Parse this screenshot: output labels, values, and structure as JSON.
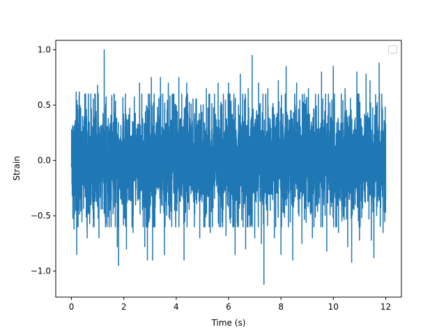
{
  "chart_data": {
    "type": "line",
    "title": "",
    "xlabel": "Time (s)",
    "ylabel": "Strain",
    "xlim": [
      -0.6,
      12.6
    ],
    "ylim": [
      -1.235,
      1.085
    ],
    "grid": false,
    "legend": {
      "placement": "top-right",
      "entries": []
    },
    "x_ticks": [
      {
        "value": 0,
        "label": "0"
      },
      {
        "value": 2,
        "label": "2"
      },
      {
        "value": 4,
        "label": "4"
      },
      {
        "value": 6,
        "label": "6"
      },
      {
        "value": 8,
        "label": "8"
      },
      {
        "value": 10,
        "label": "10"
      },
      {
        "value": 12,
        "label": "12"
      }
    ],
    "y_ticks": [
      {
        "value": -1.0,
        "label": "−1.0"
      },
      {
        "value": -0.5,
        "label": "−0.5"
      },
      {
        "value": 0.0,
        "label": "0.0"
      },
      {
        "value": 0.5,
        "label": "0.5"
      },
      {
        "value": 1.0,
        "label": "1.0"
      }
    ],
    "series": [
      {
        "color": "#1f77b4",
        "x_range": [
          0,
          12
        ],
        "peaks": [
          {
            "x": 0.1,
            "y": -0.62
          },
          {
            "x": 0.18,
            "y": 0.62
          },
          {
            "x": 0.2,
            "y": -0.85
          },
          {
            "x": 0.3,
            "y": 0.62
          },
          {
            "x": 0.6,
            "y": -0.7
          },
          {
            "x": 1.0,
            "y": 0.68
          },
          {
            "x": 1.05,
            "y": -0.7
          },
          {
            "x": 1.25,
            "y": 1.0
          },
          {
            "x": 1.3,
            "y": -0.6
          },
          {
            "x": 1.75,
            "y": -0.78
          },
          {
            "x": 1.8,
            "y": -0.95
          },
          {
            "x": 2.1,
            "y": -0.8
          },
          {
            "x": 2.35,
            "y": -0.65
          },
          {
            "x": 2.6,
            "y": 0.7
          },
          {
            "x": 2.8,
            "y": -0.78
          },
          {
            "x": 2.9,
            "y": -0.9
          },
          {
            "x": 3.05,
            "y": 0.75
          },
          {
            "x": 3.1,
            "y": -0.9
          },
          {
            "x": 3.4,
            "y": 0.75
          },
          {
            "x": 3.55,
            "y": -0.85
          },
          {
            "x": 3.7,
            "y": 0.7
          },
          {
            "x": 4.1,
            "y": 0.75
          },
          {
            "x": 4.3,
            "y": -0.9
          },
          {
            "x": 4.4,
            "y": 0.7
          },
          {
            "x": 4.75,
            "y": 0.55
          },
          {
            "x": 4.9,
            "y": -0.7
          },
          {
            "x": 5.15,
            "y": 0.65
          },
          {
            "x": 5.3,
            "y": -0.65
          },
          {
            "x": 5.6,
            "y": 0.7
          },
          {
            "x": 5.9,
            "y": -0.68
          },
          {
            "x": 6.0,
            "y": 0.7
          },
          {
            "x": 6.25,
            "y": -0.85
          },
          {
            "x": 6.45,
            "y": 0.78
          },
          {
            "x": 6.65,
            "y": -0.8
          },
          {
            "x": 6.75,
            "y": 0.65
          },
          {
            "x": 6.9,
            "y": 0.95
          },
          {
            "x": 7.0,
            "y": -0.7
          },
          {
            "x": 7.15,
            "y": 0.7
          },
          {
            "x": 7.25,
            "y": -0.75
          },
          {
            "x": 7.35,
            "y": -1.12
          },
          {
            "x": 7.5,
            "y": 0.65
          },
          {
            "x": 7.75,
            "y": -0.7
          },
          {
            "x": 7.9,
            "y": 0.72
          },
          {
            "x": 8.0,
            "y": -0.85
          },
          {
            "x": 8.2,
            "y": 0.85
          },
          {
            "x": 8.45,
            "y": -0.9
          },
          {
            "x": 8.6,
            "y": 0.7
          },
          {
            "x": 8.8,
            "y": -0.75
          },
          {
            "x": 9.05,
            "y": 0.65
          },
          {
            "x": 9.2,
            "y": -0.7
          },
          {
            "x": 9.55,
            "y": 0.8
          },
          {
            "x": 9.75,
            "y": -0.82
          },
          {
            "x": 10.0,
            "y": 0.85
          },
          {
            "x": 10.2,
            "y": -0.65
          },
          {
            "x": 10.45,
            "y": 0.65
          },
          {
            "x": 10.55,
            "y": -0.78
          },
          {
            "x": 10.7,
            "y": -0.92
          },
          {
            "x": 10.9,
            "y": 0.8
          },
          {
            "x": 11.0,
            "y": -0.72
          },
          {
            "x": 11.25,
            "y": 0.78
          },
          {
            "x": 11.4,
            "y": 0.72
          },
          {
            "x": 11.45,
            "y": -0.72
          },
          {
            "x": 11.55,
            "y": -0.88
          },
          {
            "x": 11.75,
            "y": 0.88
          },
          {
            "x": 11.85,
            "y": 0.6
          },
          {
            "x": 11.9,
            "y": -0.65
          }
        ]
      }
    ]
  }
}
